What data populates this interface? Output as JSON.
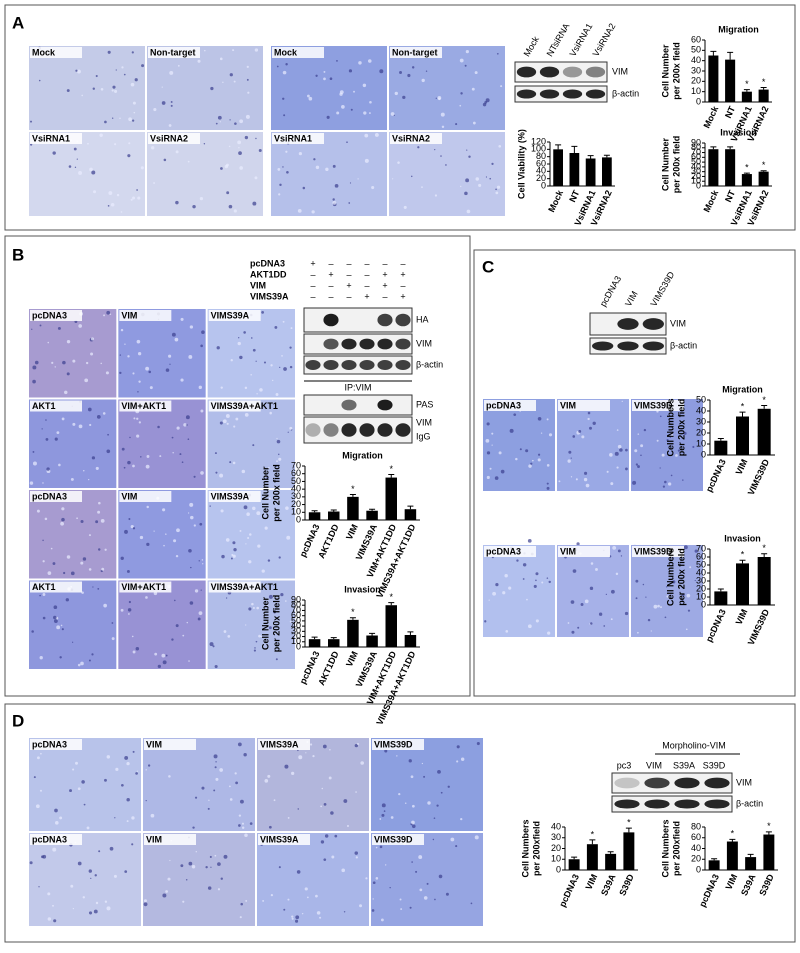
{
  "panels": {
    "A": {
      "letter": "A",
      "micrographs_1": [
        "Mock",
        "Non-target",
        "VsiRNA1",
        "VsiRNA2"
      ],
      "micrographs_2": [
        "Mock",
        "Non-target",
        "VsiRNA1",
        "VsiRNA2"
      ],
      "blot_lanes": [
        "Mock",
        "NTsiRNA",
        "VsiRNA1",
        "VsiRNA2"
      ],
      "blot_bands": [
        "VIM",
        "β-actin"
      ]
    },
    "B": {
      "letter": "B",
      "micrographs": [
        "pcDNA3",
        "VIM",
        "VIMS39A",
        "AKT1",
        "VIM+AKT1",
        "VIMS39A+AKT1",
        "pcDNA3",
        "VIM",
        "VIMS39A",
        "AKT1",
        "VIM+AKT1",
        "VIMS39A+AKT1"
      ],
      "conditions": [
        "pcDNA3",
        "AKT1DD",
        "VIM",
        "VIMS39A"
      ],
      "condition_matrix": [
        [
          "+",
          "–",
          "–",
          "–",
          "–",
          "–"
        ],
        [
          "–",
          "+",
          "–",
          "–",
          "+",
          "+"
        ],
        [
          "–",
          "–",
          "+",
          "–",
          "+",
          "–"
        ],
        [
          "–",
          "–",
          "–",
          "+",
          "–",
          "+"
        ]
      ],
      "blot_bands": [
        "HA",
        "VIM",
        "β-actin"
      ],
      "ip_label": "IP:VIM",
      "ip_bands": [
        "PAS",
        "VIM",
        "IgG"
      ]
    },
    "C": {
      "letter": "C",
      "blot_lanes": [
        "pcDNA3",
        "VIM",
        "VIMS39D"
      ],
      "blot_bands": [
        "VIM",
        "β-actin"
      ],
      "micrographs": [
        "pcDNA3",
        "VIM",
        "VIMS39D",
        "pcDNA3",
        "VIM",
        "VIMS39D"
      ]
    },
    "D": {
      "letter": "D",
      "micrographs": [
        "pcDNA3",
        "VIM",
        "VIMS39A",
        "VIMS39D",
        "pcDNA3",
        "VIM",
        "VIMS39A",
        "VIMS39D"
      ],
      "blot_header": "Morpholino-VIM",
      "blot_lanes": [
        "pc3",
        "VIM",
        "S39A",
        "S39D"
      ],
      "blot_bands": [
        "VIM",
        "β-actin"
      ]
    }
  },
  "chart_data": [
    {
      "type": "bar",
      "title": "Migration",
      "ylabel": [
        "Cell Number",
        "per 200x field"
      ],
      "categories": [
        "Mock",
        "NT",
        "VsiRNA1",
        "VsiRNA2"
      ],
      "values": [
        45,
        41,
        10,
        12
      ],
      "errors": [
        4,
        7,
        2,
        2
      ],
      "ylim": [
        0,
        60
      ],
      "yticks": [
        0,
        10,
        20,
        30,
        40,
        50,
        60
      ],
      "color": "#000000",
      "annotations": [
        {
          "index": 2,
          "text": "*"
        },
        {
          "index": 3,
          "text": "*"
        }
      ]
    },
    {
      "type": "bar",
      "ylabel": [
        "Cell Viability (%)"
      ],
      "categories": [
        "Mock",
        "NT",
        "VsiRNA1",
        "VsiRNA2"
      ],
      "values": [
        100,
        90,
        75,
        78
      ],
      "errors": [
        12,
        18,
        8,
        6
      ],
      "ylim": [
        0,
        120
      ],
      "yticks": [
        0,
        20,
        40,
        60,
        80,
        100,
        120
      ],
      "color": "#000000"
    },
    {
      "type": "bar",
      "title": "Invasion",
      "ylabel": [
        "Cell Number",
        "per 200x field"
      ],
      "categories": [
        "Mock",
        "NT",
        "VsiRNA1",
        "VsiRNA2"
      ],
      "values": [
        77,
        77,
        25,
        30
      ],
      "errors": [
        5,
        5,
        2,
        2
      ],
      "ylim": [
        0,
        90
      ],
      "yticks": [
        0,
        10,
        20,
        30,
        40,
        50,
        60,
        70,
        80,
        90
      ],
      "color": "#000000",
      "annotations": [
        {
          "index": 2,
          "text": "*"
        },
        {
          "index": 3,
          "text": "*"
        }
      ]
    },
    {
      "type": "bar",
      "title": "Migration",
      "ylabel": [
        "Cell Number",
        "per 200x field"
      ],
      "categories": [
        "pcDNA3",
        "AKT1DD",
        "VIM",
        "VIMS39A",
        "VIM+AKT1DD",
        "VIMS39A+AKT1DD"
      ],
      "values": [
        10,
        11,
        30,
        12,
        55,
        14
      ],
      "errors": [
        2,
        2,
        3,
        2,
        4,
        4
      ],
      "ylim": [
        0,
        70
      ],
      "yticks": [
        0,
        10,
        20,
        30,
        40,
        50,
        60,
        70
      ],
      "color": "#000000",
      "annotations": [
        {
          "index": 2,
          "text": "*"
        },
        {
          "index": 4,
          "text": "*"
        }
      ]
    },
    {
      "type": "bar",
      "title": "Invasion",
      "ylabel": [
        "Cell Number",
        "per 200x field"
      ],
      "categories": [
        "pcDNA3",
        "AKT1DD",
        "VIM",
        "VIMS39A",
        "VIM+AKT1DD",
        "VIMS39A+AKT1DD"
      ],
      "values": [
        15,
        15,
        52,
        22,
        80,
        23
      ],
      "errors": [
        4,
        3,
        4,
        4,
        5,
        6
      ],
      "ylim": [
        0,
        90
      ],
      "yticks": [
        0,
        10,
        20,
        30,
        40,
        50,
        60,
        70,
        80,
        90
      ],
      "color": "#000000",
      "annotations": [
        {
          "index": 2,
          "text": "*"
        },
        {
          "index": 4,
          "text": "*"
        }
      ]
    },
    {
      "type": "bar",
      "title": "Migration",
      "ylabel": [
        "Cell Numbers",
        "per 200x field"
      ],
      "categories": [
        "pcDNA3",
        "VIM",
        "VIMS39D"
      ],
      "values": [
        13,
        35,
        42
      ],
      "errors": [
        2,
        4,
        3
      ],
      "ylim": [
        0,
        50
      ],
      "yticks": [
        0,
        10,
        20,
        30,
        40,
        50
      ],
      "color": "#000000",
      "annotations": [
        {
          "index": 1,
          "text": "*"
        },
        {
          "index": 2,
          "text": "*"
        }
      ]
    },
    {
      "type": "bar",
      "title": "Invasion",
      "ylabel": [
        "Cell Numbers",
        "per 200x field"
      ],
      "categories": [
        "pcDNA3",
        "VIM",
        "VIMS39D"
      ],
      "values": [
        17,
        52,
        60
      ],
      "errors": [
        3,
        4,
        4
      ],
      "ylim": [
        0,
        70
      ],
      "yticks": [
        0,
        10,
        20,
        30,
        40,
        50,
        60,
        70
      ],
      "color": "#000000",
      "annotations": [
        {
          "index": 1,
          "text": "*"
        },
        {
          "index": 2,
          "text": "*"
        }
      ]
    },
    {
      "type": "bar",
      "ylabel": [
        "Cell Numbers",
        "per 200xfield"
      ],
      "categories": [
        "pcDNA3",
        "VIM",
        "S39A",
        "S39D"
      ],
      "values": [
        10,
        24,
        15,
        35
      ],
      "errors": [
        2,
        4,
        2,
        4
      ],
      "ylim": [
        0,
        40
      ],
      "yticks": [
        0,
        10,
        20,
        30,
        40
      ],
      "color": "#000000",
      "annotations": [
        {
          "index": 1,
          "text": "*"
        },
        {
          "index": 3,
          "text": "*"
        }
      ]
    },
    {
      "type": "bar",
      "ylabel": [
        "Cell Numbers",
        "per 200xfield"
      ],
      "categories": [
        "pcDNA3",
        "VIM",
        "S39A",
        "S39D"
      ],
      "values": [
        18,
        53,
        24,
        66
      ],
      "errors": [
        3,
        4,
        5,
        5
      ],
      "ylim": [
        0,
        80
      ],
      "yticks": [
        0,
        20,
        40,
        60,
        80
      ],
      "color": "#000000",
      "annotations": [
        {
          "index": 1,
          "text": "*"
        },
        {
          "index": 3,
          "text": "*"
        }
      ]
    }
  ]
}
